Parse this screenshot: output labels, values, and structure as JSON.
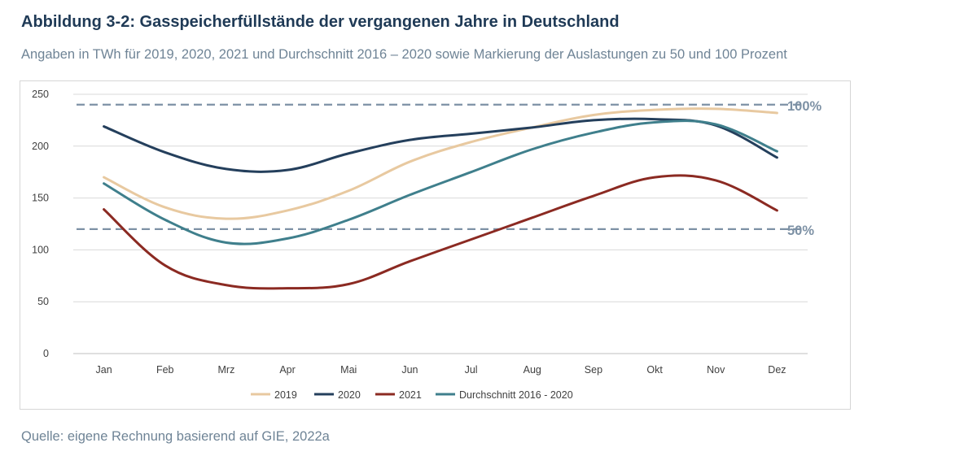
{
  "header": {
    "title": "Abbildung 3-2: Gasspeicherfüllstände der vergangenen Jahre in Deutschland",
    "subtitle": "Angaben in TWh für 2019, 2020, 2021 und Durchschnitt 2016 – 2020 sowie Markierung der Auslastungen zu 50 und 100 Prozent"
  },
  "footer": {
    "source": "Quelle: eigene Rechnung basierend auf GIE, 2022a"
  },
  "colors": {
    "2019": "#e8c9a0",
    "2020": "#243f5c",
    "2021": "#8b2a22",
    "avg": "#3f7f8c",
    "reference": "#7d91a5",
    "grid": "#d9d9d9",
    "axis_text": "#404040",
    "title": "#1f3a56",
    "subtitle": "#6f8496"
  },
  "chart_data": {
    "type": "line",
    "categories": [
      "Jan",
      "Feb",
      "Mrz",
      "Apr",
      "Mai",
      "Jun",
      "Jul",
      "Aug",
      "Sep",
      "Okt",
      "Nov",
      "Dez"
    ],
    "ylim": [
      0,
      250
    ],
    "yticks": [
      0,
      50,
      100,
      150,
      200,
      250
    ],
    "grid": true,
    "legend_position": "bottom",
    "series": [
      {
        "name": "2019",
        "key": "2019",
        "values": [
          170,
          141,
          130,
          138,
          157,
          185,
          204,
          218,
          230,
          235,
          236,
          232
        ]
      },
      {
        "name": "2020",
        "key": "2020",
        "values": [
          219,
          194,
          178,
          177,
          193,
          206,
          212,
          218,
          225,
          226,
          220,
          189
        ]
      },
      {
        "name": "2021",
        "key": "2021",
        "values": [
          139,
          85,
          66,
          63,
          67,
          89,
          110,
          131,
          152,
          170,
          167,
          138
        ]
      },
      {
        "name": "Durchschnitt 2016 - 2020",
        "key": "avg",
        "values": [
          164,
          129,
          107,
          111,
          129,
          153,
          175,
          197,
          213,
          223,
          221,
          195
        ]
      }
    ],
    "reference_lines": [
      {
        "label": "100%",
        "value": 240
      },
      {
        "label": "50%",
        "value": 120
      }
    ]
  }
}
